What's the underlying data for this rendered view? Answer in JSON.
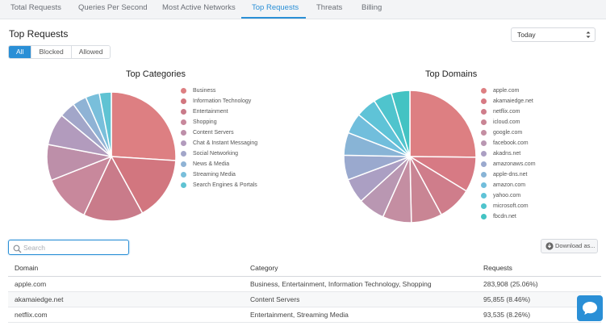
{
  "tabs": [
    {
      "label": "Total Requests",
      "active": false
    },
    {
      "label": "Queries Per Second",
      "active": false
    },
    {
      "label": "Most Active Networks",
      "active": false
    },
    {
      "label": "Top Requests",
      "active": true
    },
    {
      "label": "Threats",
      "active": false
    },
    {
      "label": "Billing",
      "active": false
    }
  ],
  "page": {
    "title": "Top Requests"
  },
  "filter": {
    "options": [
      "All",
      "Blocked",
      "Allowed"
    ],
    "selected": "All"
  },
  "date_range": {
    "value": "Today"
  },
  "charts": {
    "left": {
      "title": "Top Categories",
      "items": [
        {
          "label": "Business",
          "value": 26,
          "color": "#dd7f82"
        },
        {
          "label": "Information Technology",
          "value": 16,
          "color": "#d2767f"
        },
        {
          "label": "Entertainment",
          "value": 15,
          "color": "#c97b8a"
        },
        {
          "label": "Shopping",
          "value": 12,
          "color": "#c8889c"
        },
        {
          "label": "Content Servers",
          "value": 9,
          "color": "#bd8fa9"
        },
        {
          "label": "Chat & Instant Messaging",
          "value": 8,
          "color": "#b29bbd"
        },
        {
          "label": "Social Networking",
          "value": 4,
          "color": "#a2a6c9"
        },
        {
          "label": "News & Media",
          "value": 3.5,
          "color": "#8fb3d5"
        },
        {
          "label": "Streaming Media",
          "value": 3.5,
          "color": "#79bfdb"
        },
        {
          "label": "Search Engines & Portals",
          "value": 3,
          "color": "#5fc3d3"
        }
      ]
    },
    "right": {
      "title": "Top Domains",
      "items": [
        {
          "label": "apple.com",
          "value": 25,
          "color": "#dd7f82"
        },
        {
          "label": "akamaiedge.net",
          "value": 8.5,
          "color": "#d77a84"
        },
        {
          "label": "netflix.com",
          "value": 8.3,
          "color": "#cf7d8b"
        },
        {
          "label": "icloud.com",
          "value": 7.5,
          "color": "#c98594"
        },
        {
          "label": "google.com",
          "value": 7,
          "color": "#c48ea2"
        },
        {
          "label": "facebook.com",
          "value": 6.5,
          "color": "#b997b2"
        },
        {
          "label": "akadns.net",
          "value": 6,
          "color": "#ab9fc3"
        },
        {
          "label": "amazonaws.com",
          "value": 6,
          "color": "#9aa9ce"
        },
        {
          "label": "apple-dns.net",
          "value": 5.5,
          "color": "#88b4d6"
        },
        {
          "label": "amazon.com",
          "value": 5,
          "color": "#71bedc"
        },
        {
          "label": "yahoo.com",
          "value": 5,
          "color": "#5fc3d7"
        },
        {
          "label": "microsoft.com",
          "value": 4.5,
          "color": "#4fc4cd"
        },
        {
          "label": "fbcdn.net",
          "value": 4.5,
          "color": "#43c3c3"
        }
      ]
    }
  },
  "search": {
    "placeholder": "Search",
    "value": ""
  },
  "download": {
    "label": "Download as..."
  },
  "table": {
    "headers": [
      "Domain",
      "Category",
      "Requests"
    ],
    "rows": [
      [
        "apple.com",
        "Business, Entertainment, Information Technology, Shopping",
        "283,908 (25.06%)"
      ],
      [
        "akamaiedge.net",
        "Content Servers",
        "95,855 (8.46%)"
      ],
      [
        "netflix.com",
        "Entertainment, Streaming Media",
        "93,535 (8.26%)"
      ]
    ]
  },
  "icons": {
    "search": "search-icon",
    "download": "download-icon",
    "chat": "chat-icon",
    "caret": "select-caret-icon"
  },
  "colors": {
    "accent": "#2a8fd6"
  }
}
